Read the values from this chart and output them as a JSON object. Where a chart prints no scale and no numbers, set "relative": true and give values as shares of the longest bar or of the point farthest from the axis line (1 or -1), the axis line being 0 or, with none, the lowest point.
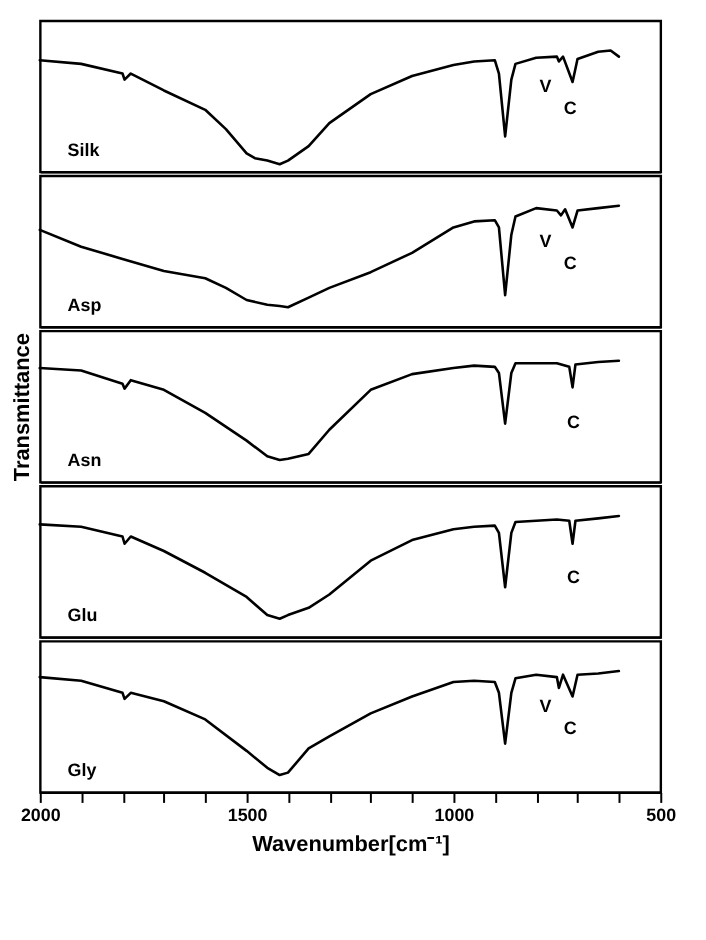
{
  "chart_data": [
    {
      "type": "line",
      "relative": true,
      "xlim": [
        2000,
        500
      ],
      "tick_labels": false,
      "series": [
        {
          "name": "Silk",
          "color": "#000000",
          "x": [
            2000,
            1900,
            1800,
            1795,
            1780,
            1700,
            1600,
            1550,
            1500,
            1480,
            1450,
            1420,
            1400,
            1350,
            1300,
            1200,
            1100,
            1000,
            950,
            900,
            890,
            875,
            860,
            850,
            800,
            750,
            745,
            735,
            712,
            700,
            650,
            620,
            600
          ],
          "values": [
            0.92,
            0.89,
            0.81,
            0.76,
            0.81,
            0.67,
            0.51,
            0.35,
            0.15,
            0.11,
            0.09,
            0.06,
            0.09,
            0.21,
            0.4,
            0.64,
            0.79,
            0.88,
            0.91,
            0.92,
            0.81,
            0.29,
            0.76,
            0.89,
            0.94,
            0.95,
            0.91,
            0.95,
            0.74,
            0.93,
            0.99,
            1,
            0.95
          ]
        }
      ],
      "annotations": [
        "V",
        "C"
      ]
    },
    {
      "type": "line",
      "relative": true,
      "xlim": [
        2000,
        500
      ],
      "tick_labels": false,
      "series": [
        {
          "name": "Asp",
          "color": "#000000",
          "x": [
            2000,
            1900,
            1800,
            1700,
            1600,
            1550,
            1500,
            1450,
            1420,
            1400,
            1350,
            1300,
            1200,
            1100,
            1000,
            950,
            900,
            890,
            875,
            860,
            850,
            800,
            750,
            740,
            730,
            712,
            700,
            650,
            600
          ],
          "values": [
            0.8,
            0.66,
            0.56,
            0.46,
            0.4,
            0.32,
            0.22,
            0.18,
            0.17,
            0.16,
            0.24,
            0.32,
            0.45,
            0.61,
            0.82,
            0.87,
            0.88,
            0.82,
            0.26,
            0.76,
            0.91,
            0.98,
            0.96,
            0.92,
            0.97,
            0.82,
            0.96,
            0.98,
            1
          ]
        }
      ],
      "annotations": [
        "V",
        "C"
      ]
    },
    {
      "type": "line",
      "relative": true,
      "xlim": [
        2000,
        500
      ],
      "tick_labels": false,
      "ylabel": "Transmittance",
      "series": [
        {
          "name": "Asn",
          "color": "#000000",
          "x": [
            2000,
            1900,
            1800,
            1795,
            1780,
            1700,
            1600,
            1500,
            1450,
            1420,
            1400,
            1350,
            1300,
            1200,
            1100,
            1000,
            950,
            900,
            890,
            875,
            860,
            850,
            800,
            750,
            720,
            712,
            705,
            650,
            600
          ],
          "values": [
            0.94,
            0.92,
            0.81,
            0.77,
            0.84,
            0.76,
            0.57,
            0.34,
            0.21,
            0.18,
            0.19,
            0.23,
            0.43,
            0.76,
            0.89,
            0.94,
            0.96,
            0.95,
            0.9,
            0.48,
            0.9,
            0.98,
            0.98,
            0.98,
            0.95,
            0.78,
            0.97,
            0.99,
            1
          ]
        }
      ],
      "annotations": [
        "C"
      ]
    },
    {
      "type": "line",
      "relative": true,
      "xlim": [
        2000,
        500
      ],
      "tick_labels": false,
      "series": [
        {
          "name": "Glu",
          "color": "#000000",
          "x": [
            2000,
            1900,
            1800,
            1795,
            1780,
            1700,
            1600,
            1500,
            1450,
            1420,
            1400,
            1350,
            1300,
            1200,
            1100,
            1000,
            950,
            900,
            890,
            875,
            860,
            850,
            800,
            750,
            720,
            712,
            705,
            650,
            600
          ],
          "values": [
            0.93,
            0.91,
            0.83,
            0.77,
            0.83,
            0.71,
            0.53,
            0.33,
            0.18,
            0.15,
            0.18,
            0.24,
            0.35,
            0.63,
            0.8,
            0.89,
            0.91,
            0.92,
            0.86,
            0.41,
            0.86,
            0.95,
            0.96,
            0.97,
            0.96,
            0.77,
            0.96,
            0.98,
            1
          ]
        }
      ],
      "annotations": [
        "C"
      ]
    },
    {
      "type": "line",
      "relative": true,
      "xlim": [
        2000,
        500
      ],
      "tick_labels": "x",
      "xlabel": "Wavenumber[cm⁻¹]",
      "xticks": [
        2000,
        {
          "value": 1900,
          "label": null
        },
        {
          "value": 1800,
          "label": null
        },
        {
          "value": 1700,
          "label": null
        },
        {
          "value": 1600,
          "label": null
        },
        1500,
        {
          "value": 1400,
          "label": null
        },
        {
          "value": 1300,
          "label": null
        },
        {
          "value": 1200,
          "label": null
        },
        {
          "value": 1100,
          "label": null
        },
        1000,
        {
          "value": 900,
          "label": null
        },
        {
          "value": 800,
          "label": null
        },
        {
          "value": 700,
          "label": null
        },
        {
          "value": 600,
          "label": null
        },
        500
      ],
      "series": [
        {
          "name": "Gly",
          "color": "#000000",
          "x": [
            2000,
            1900,
            1800,
            1795,
            1780,
            1700,
            1600,
            1500,
            1450,
            1420,
            1400,
            1350,
            1300,
            1200,
            1100,
            1000,
            950,
            900,
            890,
            875,
            860,
            850,
            800,
            750,
            745,
            735,
            712,
            700,
            650,
            600
          ],
          "values": [
            0.95,
            0.92,
            0.82,
            0.77,
            0.82,
            0.75,
            0.6,
            0.34,
            0.2,
            0.14,
            0.16,
            0.36,
            0.46,
            0.65,
            0.79,
            0.91,
            0.92,
            0.91,
            0.82,
            0.4,
            0.82,
            0.94,
            0.97,
            0.95,
            0.86,
            0.97,
            0.79,
            0.97,
            0.98,
            1
          ]
        }
      ],
      "annotations": [
        "V",
        "C"
      ]
    }
  ]
}
